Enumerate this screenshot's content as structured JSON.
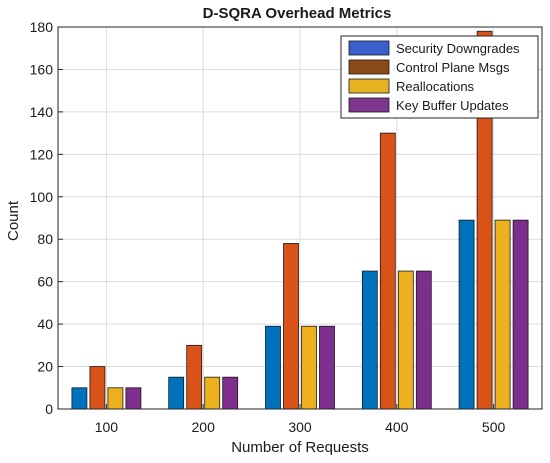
{
  "chart_data": {
    "type": "bar",
    "title": "D-SQRA Overhead Metrics",
    "xlabel": "Number of Requests",
    "ylabel": "Count",
    "categories": [
      "100",
      "200",
      "300",
      "400",
      "500"
    ],
    "ylim": [
      0,
      180
    ],
    "yticks": [
      0,
      20,
      40,
      60,
      80,
      100,
      120,
      140,
      160,
      180
    ],
    "grid": true,
    "legend_position": "top-right",
    "series": [
      {
        "name": "Security Downgrades",
        "color": "#0072BD",
        "legend_color": "#3A5FCD",
        "values": [
          10,
          15,
          39,
          65,
          89
        ]
      },
      {
        "name": "Control Plane Msgs",
        "color": "#D95319",
        "legend_color": "#8B4A1A",
        "values": [
          20,
          30,
          78,
          130,
          178
        ]
      },
      {
        "name": "Reallocations",
        "color": "#EDB120",
        "legend_color": "#E6B422",
        "values": [
          10,
          15,
          39,
          65,
          89
        ]
      },
      {
        "name": "Key Buffer Updates",
        "color": "#7E2F8E",
        "legend_color": "#7E3590",
        "values": [
          10,
          15,
          39,
          65,
          89
        ]
      }
    ]
  }
}
